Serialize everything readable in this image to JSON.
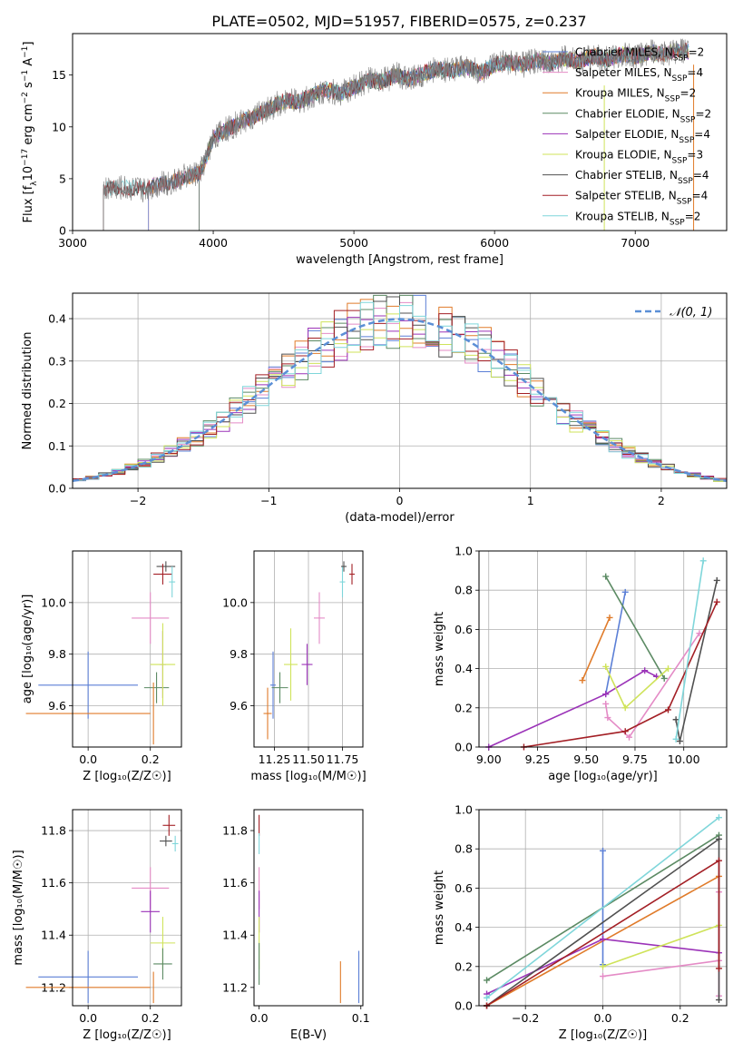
{
  "figure_title": "PLATE=0502, MJD=51957, FIBERID=0575, z=0.237",
  "model_colors": {
    "Chabrier MILES": "#5b7fd6",
    "Salpeter MILES": "#e48bc6",
    "Kroupa MILES": "#e07b2a",
    "Chabrier ELODIE": "#5b8a63",
    "Salpeter ELODIE": "#9b33b8",
    "Kroupa ELODIE": "#cfe35a",
    "Chabrier STELIB": "#505050",
    "Salpeter STELIB": "#a31f25",
    "Kroupa STELIB": "#7fd6da"
  },
  "chart_data": [
    {
      "id": "spectrum",
      "type": "line",
      "title": "PLATE=0502, MJD=51957, FIBERID=0575, z=0.237",
      "xlabel": "wavelength [Angstrom, rest frame]",
      "ylabel": "Flux [f_λ10^-17 erg cm^-2 s^-1 A^-1]",
      "xlim": [
        3000,
        7650
      ],
      "ylim": [
        0,
        19
      ],
      "xticks": [
        3000,
        4000,
        5000,
        6000,
        7000
      ],
      "yticks": [
        0,
        5,
        10,
        15
      ],
      "grid": false,
      "legend_position": "top-right",
      "legend": [
        "Chabrier MILES, N_SSP=2",
        "Salpeter MILES, N_SSP=4",
        "Kroupa MILES, N_SSP=2",
        "Chabrier ELODIE, N_SSP=2",
        "Salpeter ELODIE, N_SSP=4",
        "Kroupa ELODIE, N_SSP=3",
        "Chabrier STELIB, N_SSP=4",
        "Salpeter STELIB, N_SSP=4",
        "Kroupa STELIB, N_SSP=2"
      ],
      "data_trace": {
        "x": [
          3220,
          3300,
          3400,
          3500,
          3600,
          3700,
          3800,
          3900,
          3950,
          4000,
          4100,
          4200,
          4300,
          4400,
          4500,
          4600,
          4700,
          4800,
          4900,
          5000,
          5100,
          5200,
          5300,
          5400,
          5500,
          5600,
          5700,
          5800,
          5900,
          6000,
          6100,
          6200,
          6300,
          6400,
          6500,
          6600,
          6700,
          6800,
          6900,
          7000,
          7100,
          7200,
          7300,
          7400
        ],
        "y": [
          4.0,
          4.2,
          4.1,
          4.0,
          4.4,
          4.6,
          5.2,
          5.5,
          7.0,
          9.0,
          9.8,
          10.5,
          11.0,
          11.8,
          12.5,
          12.4,
          13.0,
          13.6,
          13.2,
          13.8,
          14.5,
          14.4,
          15.0,
          14.6,
          15.2,
          15.6,
          15.4,
          15.8,
          15.2,
          16.0,
          16.2,
          16.0,
          16.4,
          16.1,
          16.6,
          16.3,
          16.8,
          16.5,
          17.0,
          16.8,
          17.2,
          17.0,
          17.4,
          17.3
        ]
      },
      "model_start_wavelength": {
        "Chabrier MILES": 3540,
        "Salpeter MILES": 3540,
        "Kroupa MILES": 3540,
        "Chabrier ELODIE": 3900,
        "Salpeter ELODIE": 3900,
        "Kroupa ELODIE": 3900,
        "Chabrier STELIB": 3220,
        "Salpeter STELIB": 3220,
        "Kroupa STELIB": 3220
      }
    },
    {
      "id": "residuals",
      "type": "histogram",
      "xlabel": "(data-model)/error",
      "ylabel": "Normed distribution",
      "xlim": [
        -2.5,
        2.5
      ],
      "ylim": [
        0,
        0.46
      ],
      "xticks": [
        -2,
        -1,
        0,
        1,
        2
      ],
      "yticks": [
        0.0,
        0.1,
        0.2,
        0.3,
        0.4
      ],
      "grid": true,
      "legend_position": "top-right",
      "reference_curve": "N(0,1)",
      "bin_width": 0.1
    },
    {
      "id": "age_vs_Z",
      "type": "errorbar",
      "xlabel": "Z [log10(Z/Z⊙)]",
      "ylabel": "age [log10(age/yr)]",
      "xlim": [
        -0.05,
        0.3
      ],
      "ylim": [
        9.44,
        10.2
      ],
      "xticks": [
        0.0,
        0.2
      ],
      "yticks": [
        9.6,
        9.8,
        10.0
      ],
      "grid": true,
      "points": [
        {
          "model": "Chabrier MILES",
          "x": 0.0,
          "y": 9.68,
          "xerr": 0.16,
          "yerr": 0.13
        },
        {
          "model": "Kroupa MILES",
          "x": 0.0,
          "y": 9.57,
          "xerr": 0.2,
          "yerr": 0.0
        },
        {
          "model": "Salpeter MILES",
          "x": 0.2,
          "y": 9.94,
          "xerr": 0.06,
          "yerr": 0.1
        },
        {
          "model": "Chabrier ELODIE",
          "x": 0.22,
          "y": 9.67,
          "xerr": 0.04,
          "yerr": 0.06
        },
        {
          "model": "Salpeter ELODIE",
          "x": 0.24,
          "y": 9.76,
          "xerr": 0.01,
          "yerr": 0.13
        },
        {
          "model": "Kroupa ELODIE",
          "x": 0.24,
          "y": 9.76,
          "xerr": 0.04,
          "yerr": 0.16
        },
        {
          "model": "Chabrier STELIB",
          "x": 0.25,
          "y": 10.14,
          "xerr": 0.03,
          "yerr": 0.02
        },
        {
          "model": "Salpeter STELIB",
          "x": 0.24,
          "y": 10.11,
          "xerr": 0.03,
          "yerr": 0.04
        },
        {
          "model": "Kroupa STELIB",
          "x": 0.27,
          "y": 10.08,
          "xerr": 0.01,
          "yerr": 0.06
        },
        {
          "model": "Kroupa MILES",
          "x": 0.21,
          "y": 9.57,
          "xerr": 0.0,
          "yerr": 0.12
        }
      ]
    },
    {
      "id": "age_vs_mass",
      "type": "errorbar",
      "xlabel": "mass [log10(M/M⊙)]",
      "ylabel": "",
      "xlim": [
        11.1,
        11.9
      ],
      "ylim": [
        9.44,
        10.2
      ],
      "xticks": [
        11.25,
        11.5,
        11.75
      ],
      "yticks": [
        9.6,
        9.8,
        10.0
      ],
      "grid": true,
      "points": [
        {
          "model": "Chabrier MILES",
          "x": 11.24,
          "y": 9.68,
          "xerr": 0.02,
          "yerr": 0.13
        },
        {
          "model": "Kroupa MILES",
          "x": 11.2,
          "y": 9.57,
          "xerr": 0.03,
          "yerr": 0.1
        },
        {
          "model": "Chabrier ELODIE",
          "x": 11.29,
          "y": 9.67,
          "xerr": 0.06,
          "yerr": 0.06
        },
        {
          "model": "Kroupa ELODIE",
          "x": 11.37,
          "y": 9.76,
          "xerr": 0.05,
          "yerr": 0.14
        },
        {
          "model": "Salpeter ELODIE",
          "x": 11.49,
          "y": 9.76,
          "xerr": 0.04,
          "yerr": 0.08
        },
        {
          "model": "Salpeter MILES",
          "x": 11.58,
          "y": 9.94,
          "xerr": 0.04,
          "yerr": 0.1
        },
        {
          "model": "Kroupa STELIB",
          "x": 11.75,
          "y": 10.08,
          "xerr": 0.02,
          "yerr": 0.06
        },
        {
          "model": "Chabrier STELIB",
          "x": 11.76,
          "y": 10.14,
          "xerr": 0.02,
          "yerr": 0.02
        },
        {
          "model": "Salpeter STELIB",
          "x": 11.82,
          "y": 10.11,
          "xerr": 0.02,
          "yerr": 0.04
        }
      ]
    },
    {
      "id": "massweight_vs_age",
      "type": "line",
      "xlabel": "age [log10(age/yr)]",
      "ylabel": "mass weight",
      "xlim": [
        8.95,
        10.22
      ],
      "ylim": [
        0,
        1
      ],
      "xticks": [
        9.0,
        9.25,
        9.5,
        9.75,
        10.0
      ],
      "yticks": [
        0.0,
        0.2,
        0.4,
        0.6,
        0.8,
        1.0
      ],
      "grid": true,
      "series": [
        {
          "model": "Chabrier MILES",
          "x": [
            9.6,
            9.7
          ],
          "y": [
            0.27,
            0.79
          ]
        },
        {
          "model": "Kroupa MILES",
          "x": [
            9.48,
            9.62
          ],
          "y": [
            0.34,
            0.66
          ]
        },
        {
          "model": "Salpeter MILES",
          "x": [
            9.6,
            9.61,
            9.72,
            10.08
          ],
          "y": [
            0.22,
            0.15,
            0.05,
            0.58
          ]
        },
        {
          "model": "Chabrier ELODIE",
          "x": [
            9.6,
            9.9
          ],
          "y": [
            0.87,
            0.35
          ]
        },
        {
          "model": "Salpeter ELODIE",
          "x": [
            9.0,
            9.6,
            9.8,
            9.86
          ],
          "y": [
            0.0,
            0.27,
            0.39,
            0.36
          ]
        },
        {
          "model": "Kroupa ELODIE",
          "x": [
            9.6,
            9.7,
            9.92
          ],
          "y": [
            0.41,
            0.2,
            0.4
          ]
        },
        {
          "model": "Chabrier STELIB",
          "x": [
            9.96,
            9.98,
            10.17
          ],
          "y": [
            0.14,
            0.03,
            0.85
          ]
        },
        {
          "model": "Salpeter STELIB",
          "x": [
            9.18,
            9.7,
            9.92,
            10.17
          ],
          "y": [
            0.0,
            0.08,
            0.19,
            0.74
          ]
        },
        {
          "model": "Kroupa STELIB",
          "x": [
            9.96,
            10.1
          ],
          "y": [
            0.04,
            0.95
          ]
        }
      ]
    },
    {
      "id": "mass_vs_Z",
      "type": "errorbar",
      "xlabel": "Z [log10(Z/Z⊙)]",
      "ylabel": "mass [log10(M/M⊙)]",
      "xlim": [
        -0.05,
        0.3
      ],
      "ylim": [
        11.13,
        11.88
      ],
      "xticks": [
        0.0,
        0.2
      ],
      "yticks": [
        11.2,
        11.4,
        11.6,
        11.8
      ],
      "grid": true,
      "points": [
        {
          "model": "Chabrier MILES",
          "x": 0.0,
          "y": 11.24,
          "xerr": 0.16,
          "yerr": 0.1
        },
        {
          "model": "Kroupa MILES",
          "x": 0.0,
          "y": 11.2,
          "xerr": 0.2,
          "yerr": 0.0
        },
        {
          "model": "Kroupa MILES",
          "x": 0.21,
          "y": 11.2,
          "xerr": 0.0,
          "yerr": 0.06
        },
        {
          "model": "Salpeter MILES",
          "x": 0.2,
          "y": 11.58,
          "xerr": 0.06,
          "yerr": 0.08
        },
        {
          "model": "Salpeter ELODIE",
          "x": 0.2,
          "y": 11.49,
          "xerr": 0.03,
          "yerr": 0.08
        },
        {
          "model": "Kroupa ELODIE",
          "x": 0.24,
          "y": 11.37,
          "xerr": 0.04,
          "yerr": 0.1
        },
        {
          "model": "Chabrier ELODIE",
          "x": 0.24,
          "y": 11.29,
          "xerr": 0.03,
          "yerr": 0.06
        },
        {
          "model": "Chabrier STELIB",
          "x": 0.25,
          "y": 11.76,
          "xerr": 0.02,
          "yerr": 0.02
        },
        {
          "model": "Salpeter STELIB",
          "x": 0.26,
          "y": 11.82,
          "xerr": 0.02,
          "yerr": 0.04
        },
        {
          "model": "Kroupa STELIB",
          "x": 0.28,
          "y": 11.75,
          "xerr": 0.01,
          "yerr": 0.03
        }
      ]
    },
    {
      "id": "mass_vs_EBV",
      "type": "errorbar",
      "xlabel": "E(B-V)",
      "ylabel": "",
      "xlim": [
        -0.005,
        0.102
      ],
      "ylim": [
        11.13,
        11.88
      ],
      "xticks": [
        0.0,
        0.1
      ],
      "yticks": [
        11.2,
        11.4,
        11.6,
        11.8
      ],
      "grid": false,
      "points": [
        {
          "model": "Salpeter STELIB",
          "x": 0.0,
          "y": 11.82,
          "xerr": 0.0,
          "yerr": 0.04
        },
        {
          "model": "Kroupa STELIB",
          "x": 0.0,
          "y": 11.75,
          "xerr": 0.0,
          "yerr": 0.04
        },
        {
          "model": "Salpeter MILES",
          "x": 0.0,
          "y": 11.58,
          "xerr": 0.0,
          "yerr": 0.08
        },
        {
          "model": "Salpeter ELODIE",
          "x": 0.0,
          "y": 11.49,
          "xerr": 0.0,
          "yerr": 0.08
        },
        {
          "model": "Kroupa ELODIE",
          "x": 0.0,
          "y": 11.37,
          "xerr": 0.0,
          "yerr": 0.1
        },
        {
          "model": "Chabrier ELODIE",
          "x": 0.0,
          "y": 11.29,
          "xerr": 0.0,
          "yerr": 0.08
        },
        {
          "model": "Kroupa MILES",
          "x": 0.08,
          "y": 11.22,
          "xerr": 0.0,
          "yerr": 0.08
        },
        {
          "model": "Chabrier MILES",
          "x": 0.098,
          "y": 11.24,
          "xerr": 0.0,
          "yerr": 0.1
        }
      ]
    },
    {
      "id": "massweight_vs_Z",
      "type": "line",
      "xlabel": "Z [log10(Z/Z⊙)]",
      "ylabel": "mass weight",
      "xlim": [
        -0.32,
        0.32
      ],
      "ylim": [
        0,
        1
      ],
      "xticks": [
        -0.2,
        0.0,
        0.2
      ],
      "yticks": [
        0.0,
        0.2,
        0.4,
        0.6,
        0.8,
        1.0
      ],
      "grid": true,
      "series": [
        {
          "model": "Chabrier MILES",
          "x": [
            0.0,
            0.0
          ],
          "y": [
            0.21,
            0.79
          ]
        },
        {
          "model": "Salpeter MILES",
          "x": [
            0.0,
            0.3,
            0.3,
            0.3
          ],
          "y": [
            0.15,
            0.23,
            0.58,
            0.05
          ]
        },
        {
          "model": "Kroupa MILES",
          "x": [
            -0.3,
            0.3
          ],
          "y": [
            0.0,
            0.66
          ]
        },
        {
          "model": "Chabrier ELODIE",
          "x": [
            -0.3,
            0.3
          ],
          "y": [
            0.13,
            0.87
          ]
        },
        {
          "model": "Salpeter ELODIE",
          "x": [
            -0.3,
            0.0,
            0.3
          ],
          "y": [
            0.06,
            0.34,
            0.27
          ]
        },
        {
          "model": "Kroupa ELODIE",
          "x": [
            0.0,
            0.3
          ],
          "y": [
            0.2,
            0.41
          ]
        },
        {
          "model": "Chabrier STELIB",
          "x": [
            -0.3,
            0.3,
            0.3
          ],
          "y": [
            0.0,
            0.85,
            0.03
          ]
        },
        {
          "model": "Salpeter STELIB",
          "x": [
            -0.3,
            0.3,
            0.3
          ],
          "y": [
            0.0,
            0.74,
            0.19
          ]
        },
        {
          "model": "Kroupa STELIB",
          "x": [
            -0.3,
            0.3
          ],
          "y": [
            0.04,
            0.96
          ]
        }
      ]
    }
  ]
}
